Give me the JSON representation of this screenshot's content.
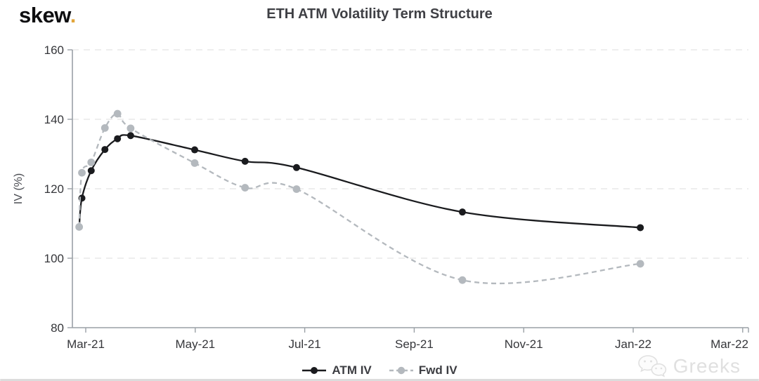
{
  "header": {
    "logo_text": "skew",
    "logo_dot": ".",
    "logo_dot_color": "#e2a63b"
  },
  "watermark": {
    "icon": "wechat-chat-bubbles-icon",
    "text": "Greeks"
  },
  "colors": {
    "atm_series": "#1a1b1e",
    "fwd_series": "#b4b9be",
    "gridline": "#e8e8e8",
    "axis": "#9aa0a6",
    "title_text": "#3f4045",
    "tick_text": "#35363a"
  },
  "chart_data": {
    "type": "line",
    "title": "ETH ATM Volatility Term Structure",
    "xlabel": "",
    "ylabel": "IV (%)",
    "grid": "horizontal-dashed",
    "x_axis": {
      "tick_labels": [
        "Mar-21",
        "May-21",
        "Jul-21",
        "Sep-21",
        "Nov-21",
        "Jan-22",
        "Mar-22"
      ],
      "tick_months_from_mar21": [
        0,
        2,
        4,
        6,
        8,
        10,
        12
      ],
      "range_months": [
        -0.25,
        12.1
      ]
    },
    "y_axis": {
      "tick_labels": [
        "80",
        "100",
        "120",
        "140",
        "160"
      ],
      "ticks": [
        80,
        100,
        120,
        140,
        160
      ],
      "range": [
        80,
        160
      ]
    },
    "legend": {
      "position": "bottom-center",
      "entries": [
        "ATM IV",
        "Fwd IV"
      ]
    },
    "series": [
      {
        "name": "ATM IV",
        "color": "#1a1b1e",
        "line_style": "solid",
        "marker": "circle",
        "x_months_from_mar21": [
          -0.12,
          -0.07,
          0.1,
          0.35,
          0.58,
          0.82,
          1.99,
          2.91,
          3.85,
          6.88,
          10.13
        ],
        "values": [
          109.0,
          117.3,
          125.2,
          131.3,
          134.4,
          135.3,
          131.2,
          127.9,
          126.1,
          113.3,
          108.8
        ]
      },
      {
        "name": "Fwd IV",
        "color": "#b4b9be",
        "line_style": "dashed",
        "marker": "circle",
        "x_months_from_mar21": [
          -0.12,
          -0.07,
          0.1,
          0.35,
          0.58,
          0.82,
          1.99,
          2.91,
          3.85,
          6.88,
          10.13
        ],
        "values": [
          109.0,
          124.6,
          127.6,
          137.5,
          141.6,
          137.4,
          127.4,
          120.3,
          119.9,
          93.7,
          98.4
        ]
      }
    ]
  }
}
